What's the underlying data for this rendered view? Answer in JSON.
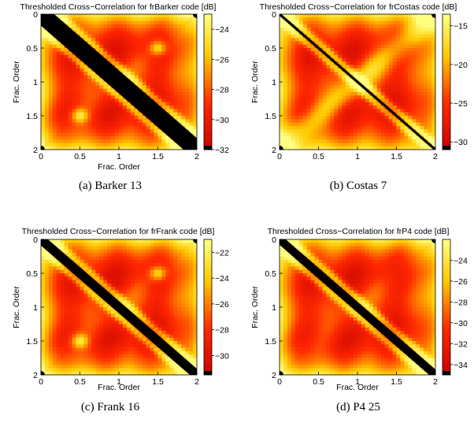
{
  "chart_data": [
    {
      "type": "heatmap",
      "title": "Thresholded Cross−Correlation for frBarker code [dB]",
      "xlabel": "Frac. Order",
      "ylabel": "Frac. Order",
      "xlim": [
        0,
        2
      ],
      "ylim": [
        0,
        2
      ],
      "x_ticks": [
        "0",
        "0.5",
        "1",
        "1.5",
        "2"
      ],
      "y_ticks": [
        "0",
        "0.5",
        "1",
        "1.5",
        "2"
      ],
      "show_x_ticks": true,
      "show_xlabel": true,
      "colorbar_range": [
        -32,
        -23
      ],
      "colorbar_ticks": [
        -24,
        -26,
        -28,
        -30,
        -32
      ],
      "colormap": "hot",
      "caption": "(a)  Barker 13",
      "band_halfwidth": 0.17,
      "band_spread": 0.07,
      "bright_spots": [
        [
          0.5,
          1.5
        ],
        [
          1.5,
          0.5
        ]
      ]
    },
    {
      "type": "heatmap",
      "title": "Thresholded Cross−Correlation for frCostas code [dB]",
      "xlabel": "",
      "ylabel": "Frac. Order",
      "xlim": [
        0,
        2
      ],
      "ylim": [
        0,
        2
      ],
      "x_ticks": [
        "0",
        "0.5",
        "1",
        "1.5",
        "2"
      ],
      "y_ticks": [
        "0",
        "0.5",
        "1",
        "1.5",
        "2"
      ],
      "show_x_ticks": true,
      "show_xlabel": false,
      "colorbar_range": [
        -31,
        -13.5
      ],
      "colorbar_ticks": [
        -15,
        -20,
        -25,
        -30
      ],
      "colormap": "hot",
      "caption": "(b)  Costas 7",
      "band_halfwidth": 0.025,
      "band_spread": 0.005,
      "bright_spots": []
    },
    {
      "type": "heatmap",
      "title": "Thresholded Cross−Correlation for frFrank code [dB]",
      "xlabel": "Frac. Order",
      "ylabel": "Frac. Order",
      "xlim": [
        0,
        2
      ],
      "ylim": [
        0,
        2
      ],
      "x_ticks": [
        "0",
        "0.5",
        "1",
        "1.5",
        "2"
      ],
      "y_ticks": [
        "0",
        "0.5",
        "1",
        "1.5",
        "2"
      ],
      "show_x_ticks": true,
      "show_xlabel": true,
      "colorbar_range": [
        -31.5,
        -21
      ],
      "colorbar_ticks": [
        -22,
        -24,
        -26,
        -28,
        -30
      ],
      "colormap": "hot",
      "caption": "(c)  Frank 16",
      "band_halfwidth": 0.09,
      "band_spread": 0.04,
      "bright_spots": [
        [
          0.5,
          1.5
        ],
        [
          1.5,
          0.5
        ]
      ]
    },
    {
      "type": "heatmap",
      "title": "Thresholded Cross−Correlation for frP4 code [dB]",
      "xlabel": "Frac. Order",
      "ylabel": "Frac. Order",
      "xlim": [
        0,
        2
      ],
      "ylim": [
        0,
        2
      ],
      "x_ticks": [
        "0",
        "0.5",
        "1",
        "1.5",
        "2"
      ],
      "y_ticks": [
        "0",
        "0.5",
        "1",
        "1.5",
        "2"
      ],
      "show_x_ticks": true,
      "show_xlabel": true,
      "colorbar_range": [
        -35,
        -22
      ],
      "colorbar_ticks": [
        -24,
        -26,
        -28,
        -30,
        -32,
        -34
      ],
      "colormap": "hot",
      "caption": "(d)  P4 25",
      "band_halfwidth": 0.08,
      "band_spread": 0.03,
      "bright_spots": []
    }
  ]
}
